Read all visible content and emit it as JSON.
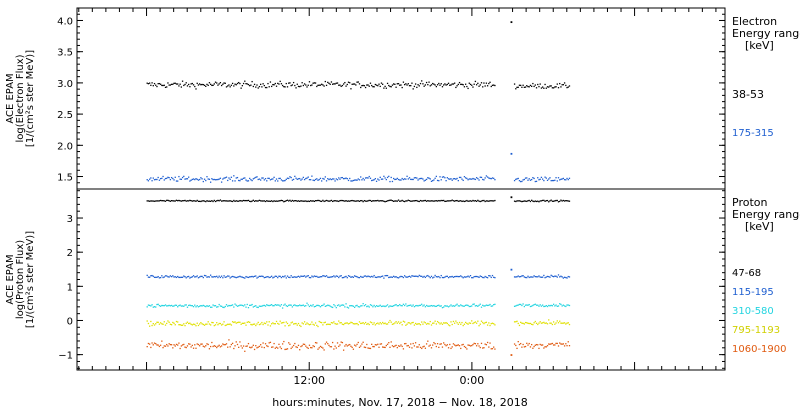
{
  "chart_data": [
    {
      "type": "scatter",
      "name_hint": "electron",
      "ylabel_lines": [
        "ACE EPAM",
        "log(Electron Flux)",
        "[1/(cm²s ster MeV)]"
      ],
      "ylim": [
        1.3,
        4.2
      ],
      "yticks": [
        {
          "v": 1.5,
          "label": "1.5"
        },
        {
          "v": 2.0,
          "label": "2.0"
        },
        {
          "v": 2.5,
          "label": "2.5"
        },
        {
          "v": 3.0,
          "label": "3.0"
        },
        {
          "v": 3.5,
          "label": "3.5"
        },
        {
          "v": 4.0,
          "label": "4.0"
        }
      ],
      "legend_title": [
        "Electron",
        "Energy ranges",
        "[keV]"
      ],
      "series": [
        {
          "name": "38-53",
          "color": "#000000",
          "segments": [
            {
              "x0": 0,
              "x1": 25.7,
              "mean": 2.98,
              "spread": 0.05
            },
            {
              "x0": 27.1,
              "x1": 31.2,
              "mean": 2.96,
              "spread": 0.04
            }
          ],
          "outliers": [
            {
              "x": 26.85,
              "y": 3.98
            }
          ]
        },
        {
          "name": "175-315",
          "color": "#1f5fd0",
          "segments": [
            {
              "x0": 0,
              "x1": 25.7,
              "mean": 1.47,
              "spread": 0.04
            },
            {
              "x0": 27.1,
              "x1": 31.2,
              "mean": 1.46,
              "spread": 0.04
            }
          ],
          "outliers": [
            {
              "x": 26.85,
              "y": 1.87
            }
          ]
        }
      ]
    },
    {
      "type": "scatter",
      "name_hint": "proton",
      "ylabel_lines": [
        "ACE EPAM",
        "log(Proton Flux)",
        "[1/(cm²s ster MeV)]"
      ],
      "ylim": [
        -1.45,
        3.85
      ],
      "yticks": [
        {
          "v": -1,
          "label": "−1"
        },
        {
          "v": 0,
          "label": "0"
        },
        {
          "v": 1,
          "label": "1"
        },
        {
          "v": 2,
          "label": "2"
        },
        {
          "v": 3,
          "label": "3"
        }
      ],
      "legend_title": [
        "Proton",
        "Energy ranges",
        "[keV]"
      ],
      "series": [
        {
          "name": "47-68",
          "color": "#000000",
          "segments": [
            {
              "x0": 0,
              "x1": 25.7,
              "mean": 3.52,
              "spread": 0.02
            },
            {
              "x0": 27.1,
              "x1": 31.2,
              "mean": 3.52,
              "spread": 0.02
            }
          ],
          "outliers": [
            {
              "x": 26.85,
              "y": 3.62
            }
          ]
        },
        {
          "name": "115-195",
          "color": "#1f5fd0",
          "segments": [
            {
              "x0": 0,
              "x1": 25.7,
              "mean": 1.3,
              "spread": 0.04
            },
            {
              "x0": 27.1,
              "x1": 31.2,
              "mean": 1.3,
              "spread": 0.04
            }
          ],
          "outliers": [
            {
              "x": 26.85,
              "y": 1.5
            }
          ]
        },
        {
          "name": "310-580",
          "color": "#22d4e0",
          "segments": [
            {
              "x0": 0,
              "x1": 25.7,
              "mean": 0.45,
              "spread": 0.05
            },
            {
              "x0": 27.1,
              "x1": 31.2,
              "mean": 0.47,
              "spread": 0.04
            }
          ],
          "outliers": []
        },
        {
          "name": "795-1193",
          "color": "#e0e000",
          "segments": [
            {
              "x0": 0,
              "x1": 25.7,
              "mean": -0.07,
              "spread": 0.07
            },
            {
              "x0": 27.1,
              "x1": 31.2,
              "mean": -0.05,
              "spread": 0.06
            }
          ],
          "outliers": []
        },
        {
          "name": "1060-1900",
          "color": "#e05a10",
          "segments": [
            {
              "x0": 0,
              "x1": 25.7,
              "mean": -0.72,
              "spread": 0.12
            },
            {
              "x0": 27.1,
              "x1": 31.2,
              "mean": -0.7,
              "spread": 0.1
            }
          ],
          "outliers": [
            {
              "x": 26.85,
              "y": -1.0
            }
          ]
        }
      ]
    }
  ],
  "x_axis": {
    "unit": "hours since Nov. 17, 2018 00:00",
    "range": [
      -5.13,
      42.67
    ],
    "ticks": [
      {
        "v": 12,
        "label": "12:00"
      },
      {
        "v": 24,
        "label": "0:00"
      }
    ],
    "xlabel": "hours:minutes, Nov. 17, 2018 − Nov. 18, 2018"
  }
}
